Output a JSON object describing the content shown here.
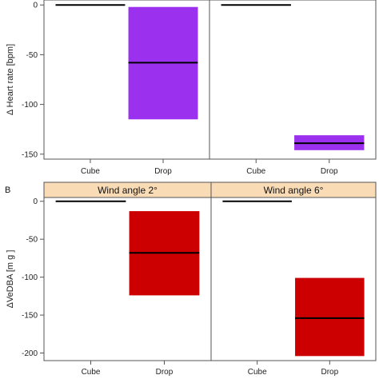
{
  "chart_data": [
    {
      "type": "bar",
      "panel_label": "",
      "ylabel": "Δ Heart rate [bpm]",
      "ylim": [
        -155,
        5
      ],
      "yticks": [
        0,
        -50,
        -100,
        -150
      ],
      "categories": [
        "Cube",
        "Drop"
      ],
      "bar_color": "#9b30ef",
      "facets": [
        {
          "strip_label": "",
          "bars": [
            {
              "category": "Cube",
              "mean": 0,
              "lower": 0,
              "upper": 0
            },
            {
              "category": "Drop",
              "mean": -58,
              "lower": -115,
              "upper": -2
            }
          ]
        },
        {
          "strip_label": "",
          "bars": [
            {
              "category": "Cube",
              "mean": 0,
              "lower": 0,
              "upper": 0
            },
            {
              "category": "Drop",
              "mean": -139,
              "lower": -146,
              "upper": -131
            }
          ]
        }
      ]
    },
    {
      "type": "bar",
      "panel_label": "B",
      "ylabel": "ΔVeDBA [m g ]",
      "ylim": [
        -210,
        5
      ],
      "yticks": [
        0,
        -50,
        -100,
        -150,
        -200
      ],
      "categories": [
        "Cube",
        "Drop"
      ],
      "bar_color": "#cc0000",
      "strip_color": "#f9dcb6",
      "facets": [
        {
          "strip_label": "Wind angle 2°",
          "bars": [
            {
              "category": "Cube",
              "mean": 0,
              "lower": 0,
              "upper": 0
            },
            {
              "category": "Drop",
              "mean": -68,
              "lower": -124,
              "upper": -13
            }
          ]
        },
        {
          "strip_label": "Wind angle 6°",
          "bars": [
            {
              "category": "Cube",
              "mean": 0,
              "lower": 0,
              "upper": 0
            },
            {
              "category": "Drop",
              "mean": -154,
              "lower": -204,
              "upper": -101
            }
          ]
        }
      ]
    }
  ]
}
